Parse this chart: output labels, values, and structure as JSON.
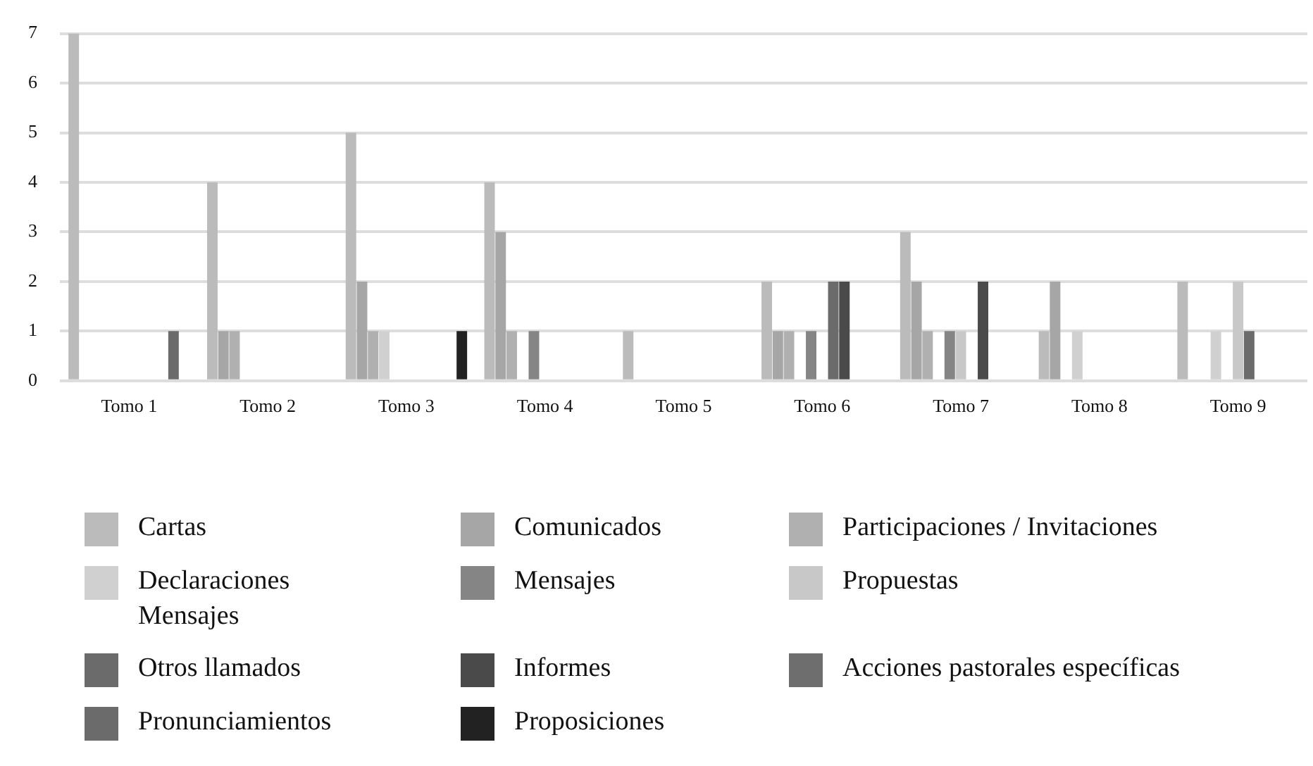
{
  "chart_data": {
    "type": "bar",
    "categories": [
      "Tomo 1",
      "Tomo 2",
      "Tomo 3",
      "Tomo 4",
      "Tomo 5",
      "Tomo 6",
      "Tomo 7",
      "Tomo 8",
      "Tomo 9"
    ],
    "series": [
      {
        "name": "Cartas",
        "color": "#bbbbbb",
        "values": [
          7,
          4,
          5,
          4,
          1,
          2,
          3,
          1,
          2
        ]
      },
      {
        "name": "Comunicados",
        "color": "#a6a6a6",
        "values": [
          0,
          1,
          2,
          3,
          0,
          1,
          2,
          2,
          0
        ]
      },
      {
        "name": "Participaciones / Invitaciones",
        "color": "#b0b0b0",
        "values": [
          0,
          1,
          1,
          1,
          0,
          1,
          1,
          0,
          0
        ]
      },
      {
        "name": "Declaraciones Mensajes",
        "color": "#d0d0d0",
        "values": [
          0,
          0,
          1,
          0,
          0,
          0,
          0,
          1,
          1
        ]
      },
      {
        "name": "Mensajes",
        "color": "#858585",
        "values": [
          0,
          0,
          0,
          1,
          0,
          1,
          1,
          0,
          0
        ]
      },
      {
        "name": "Propuestas",
        "color": "#c8c8c8",
        "values": [
          0,
          0,
          0,
          0,
          0,
          0,
          1,
          0,
          2
        ]
      },
      {
        "name": "Otros llamados",
        "color": "#6b6b6b",
        "values": [
          0,
          0,
          0,
          0,
          0,
          2,
          0,
          0,
          1
        ]
      },
      {
        "name": "Informes",
        "color": "#4a4a4a",
        "values": [
          0,
          0,
          0,
          0,
          0,
          2,
          2,
          0,
          0
        ]
      },
      {
        "name": "Acciones pastorales específicas",
        "color": "#6e6e6e",
        "values": [
          0,
          0,
          0,
          0,
          0,
          0,
          0,
          0,
          0
        ]
      },
      {
        "name": "Pronunciamientos",
        "color": "#6b6b6b",
        "values": [
          1,
          0,
          0,
          0,
          0,
          0,
          0,
          0,
          0
        ]
      },
      {
        "name": "Proposiciones",
        "color": "#222222",
        "values": [
          0,
          0,
          1,
          0,
          0,
          0,
          0,
          0,
          0
        ]
      }
    ],
    "ylim": [
      0,
      7
    ],
    "yticks": [
      0,
      1,
      2,
      3,
      4,
      5,
      6,
      7
    ],
    "grid": "y",
    "legend": "bottom"
  }
}
